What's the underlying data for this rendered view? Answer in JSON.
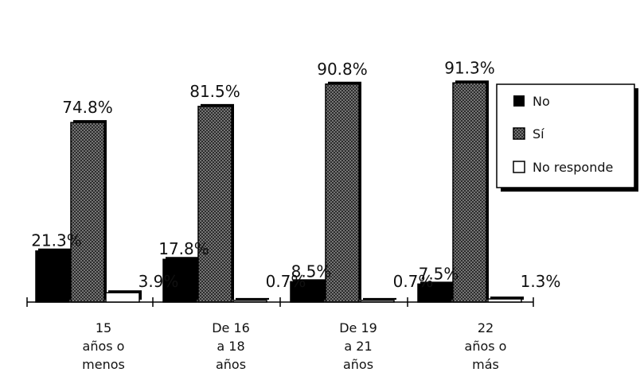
{
  "chart_data": {
    "type": "bar",
    "title": "",
    "xlabel": "",
    "ylabel": "",
    "ylim": [
      0,
      100
    ],
    "grid": false,
    "legend_position": "right",
    "categories": [
      [
        "15",
        "años o",
        "menos"
      ],
      [
        "De 16",
        "a 18",
        "años"
      ],
      [
        "De 19",
        "a 21",
        "años"
      ],
      [
        "22",
        "años o",
        "más"
      ]
    ],
    "series": [
      {
        "name": "No",
        "values": [
          21.3,
          17.8,
          8.5,
          7.5
        ],
        "labels": [
          "21.3%",
          "17.8%",
          "8.5%",
          "7.5%"
        ],
        "color": "#000000",
        "style": "solid"
      },
      {
        "name": "Sí",
        "values": [
          74.8,
          81.5,
          90.8,
          91.3
        ],
        "labels": [
          "74.8%",
          "81.5%",
          "90.8%",
          "91.3%"
        ],
        "color": "#555555",
        "style": "hatched"
      },
      {
        "name": "No responde",
        "values": [
          3.9,
          0.7,
          0.7,
          1.3
        ],
        "labels": [
          "3.9%",
          "0.7%",
          "0.7%",
          "1.3%"
        ],
        "color": "#ffffff",
        "style": "outline"
      }
    ]
  }
}
